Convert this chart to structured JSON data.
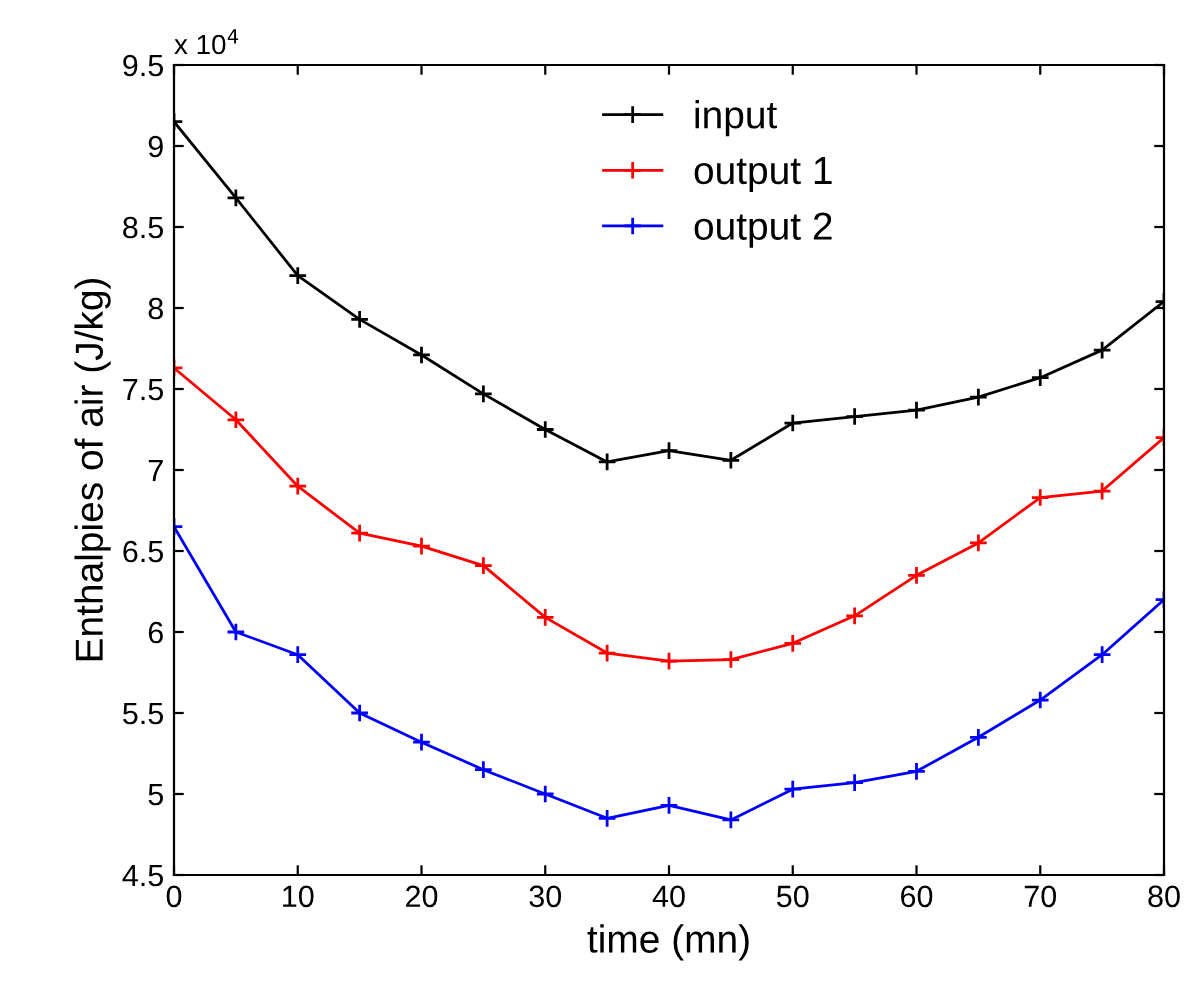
{
  "chart_data": {
    "type": "line",
    "xlabel": "time (mn)",
    "ylabel": "Enthalpies of air (J/kg)",
    "annotations": [
      "x 10$^{4}$"
    ],
    "x": [
      0,
      5,
      10,
      15,
      20,
      25,
      30,
      35,
      40,
      45,
      50,
      55,
      60,
      65,
      70,
      75,
      80
    ],
    "series": [
      {
        "name": "input",
        "color": "#000000",
        "values": [
          9.15,
          8.68,
          8.2,
          7.93,
          7.71,
          7.47,
          7.25,
          7.05,
          7.12,
          7.06,
          7.29,
          7.33,
          7.37,
          7.45,
          7.57,
          7.74,
          8.04
        ]
      },
      {
        "name": "output 1",
        "color": "#ff0000",
        "values": [
          7.63,
          7.31,
          6.9,
          6.61,
          6.53,
          6.41,
          6.09,
          5.87,
          5.82,
          5.83,
          5.93,
          6.1,
          6.35,
          6.55,
          6.83,
          6.87,
          7.2
        ]
      },
      {
        "name": "output 2",
        "color": "#0000ff",
        "values": [
          6.65,
          6.0,
          5.86,
          5.5,
          5.32,
          5.15,
          5.0,
          4.85,
          4.93,
          4.84,
          5.03,
          5.07,
          5.14,
          5.35,
          5.58,
          5.86,
          6.2
        ]
      }
    ],
    "xlim": [
      0,
      80
    ],
    "xticks": [
      0,
      10,
      20,
      30,
      40,
      50,
      60,
      70,
      80
    ],
    "ylim": [
      4.5,
      9.5
    ],
    "yticks": [
      4.5,
      5,
      5.5,
      6,
      6.5,
      7,
      7.5,
      8,
      8.5,
      9,
      9.5
    ],
    "grid": false,
    "legend": "top",
    "marker": "cross",
    "line_style": "solid"
  }
}
